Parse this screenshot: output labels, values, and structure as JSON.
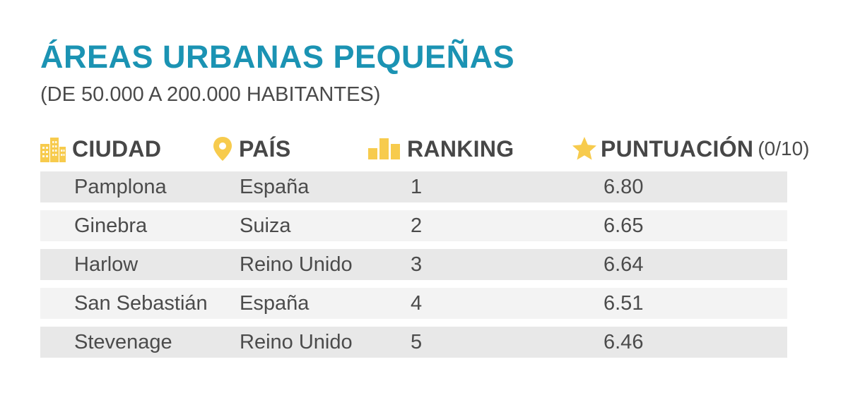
{
  "title": "ÁREAS URBANAS PEQUEÑAS",
  "subtitle": "(DE 50.000 A 200.000 HABITANTES)",
  "headers": {
    "city": {
      "label": "CIUDAD",
      "icon": "buildings-icon"
    },
    "country": {
      "label": "PAÍS",
      "icon": "location-pin-icon"
    },
    "ranking": {
      "label": "RANKING",
      "icon": "bar-chart-icon"
    },
    "score": {
      "label": "PUNTUACIÓN",
      "note": "(0/10)",
      "icon": "star-icon"
    }
  },
  "colors": {
    "title": "#1b93b3",
    "icon": "#f7cb4d",
    "row_dark": "#e8e8e8",
    "row_light": "#f3f3f3"
  },
  "chart_data": {
    "type": "table",
    "title": "ÁREAS URBANAS PEQUEÑAS",
    "subtitle": "(DE 50.000 A 200.000 HABITANTES)",
    "columns": [
      "CIUDAD",
      "PAÍS",
      "RANKING",
      "PUNTUACIÓN (0/10)"
    ],
    "rows": [
      {
        "city": "Pamplona",
        "country": "España",
        "rank": "1",
        "score": "6.80"
      },
      {
        "city": "Ginebra",
        "country": "Suiza",
        "rank": "2",
        "score": "6.65"
      },
      {
        "city": "Harlow",
        "country": "Reino Unido",
        "rank": "3",
        "score": "6.64"
      },
      {
        "city": "San Sebastián",
        "country": "España",
        "rank": "4",
        "score": "6.51"
      },
      {
        "city": "Stevenage",
        "country": "Reino Unido",
        "rank": "5",
        "score": "6.46"
      }
    ]
  }
}
